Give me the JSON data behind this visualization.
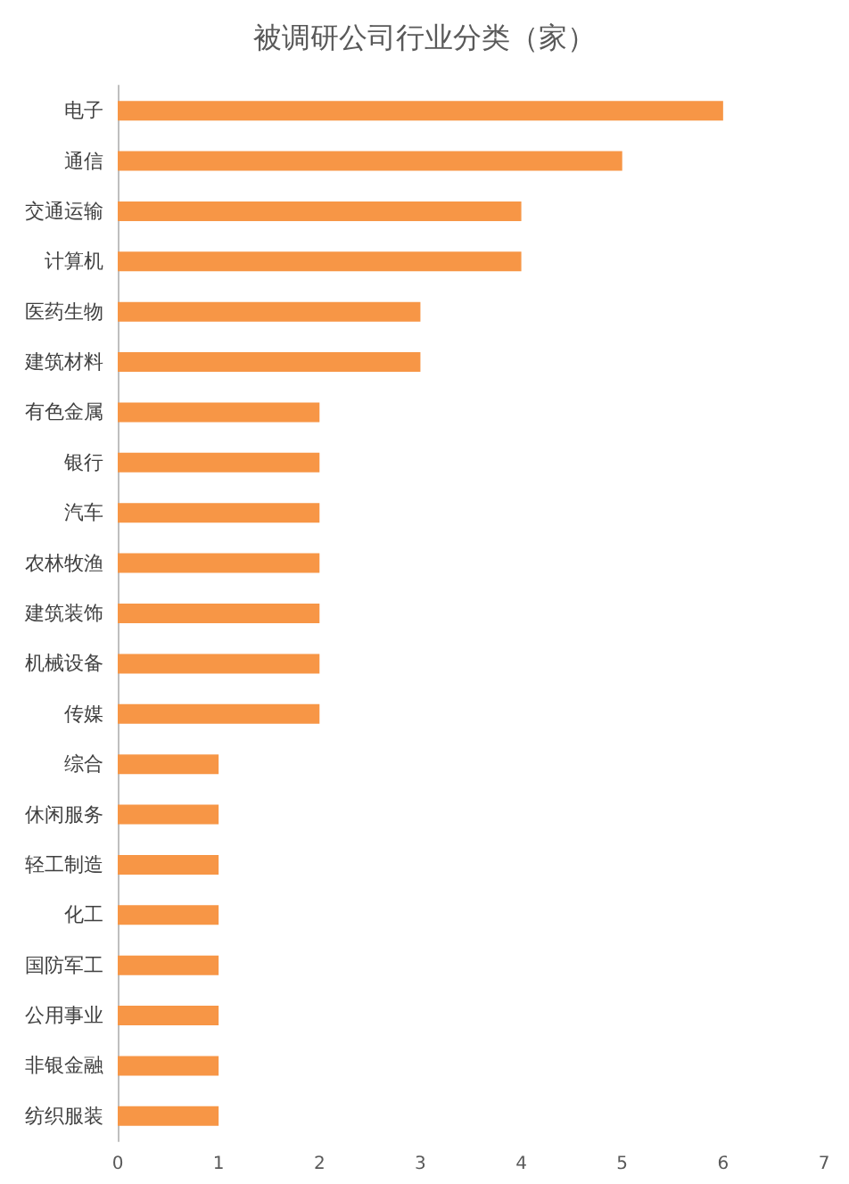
{
  "chart_data": {
    "type": "bar",
    "orientation": "horizontal",
    "title": "被调研公司行业分类（家）",
    "categories": [
      "电子",
      "通信",
      "交通运输",
      "计算机",
      "医药生物",
      "建筑材料",
      "有色金属",
      "银行",
      "汽车",
      "农林牧渔",
      "建筑装饰",
      "机械设备",
      "传媒",
      "综合",
      "休闲服务",
      "轻工制造",
      "化工",
      "国防军工",
      "公用事业",
      "非银金融",
      "纺织服装"
    ],
    "values": [
      6,
      5,
      4,
      4,
      3,
      3,
      2,
      2,
      2,
      2,
      2,
      2,
      2,
      1,
      1,
      1,
      1,
      1,
      1,
      1,
      1
    ],
    "color": "#f79646",
    "xlim": [
      0,
      7
    ],
    "xticks": [
      0,
      1,
      2,
      3,
      4,
      5,
      6,
      7
    ],
    "grid": false
  }
}
